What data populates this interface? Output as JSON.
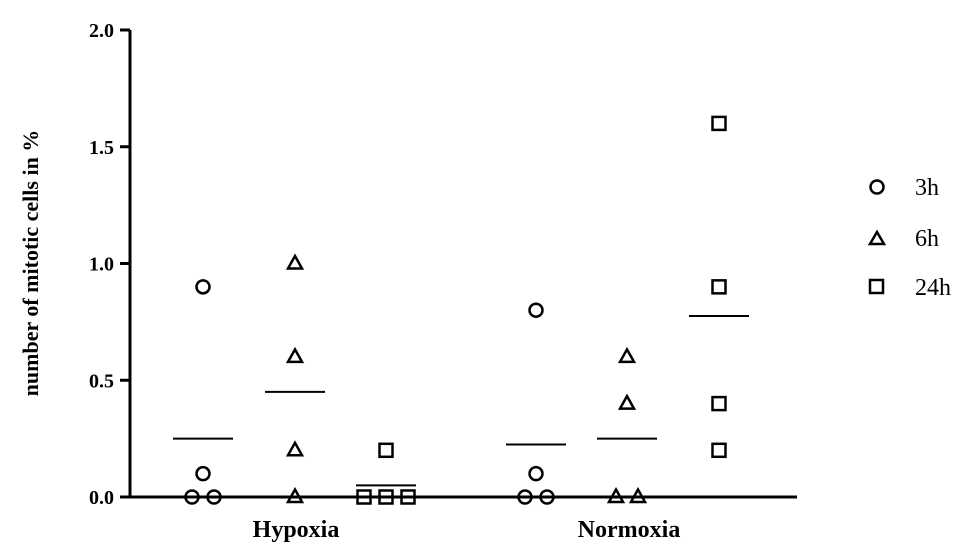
{
  "chart_data": {
    "type": "scatter",
    "title": "",
    "ylabel": "number of mitotic cells in %",
    "xlabel": "",
    "ylim": [
      0,
      2.0
    ],
    "yticks": [
      "0.0",
      "0.5",
      "1.0",
      "1.5",
      "2.0"
    ],
    "ytick_values": [
      0,
      0.5,
      1.0,
      1.5,
      2.0
    ],
    "categories": [
      "Hypoxia",
      "Normoxia"
    ],
    "legend_position": "right",
    "grid": false,
    "series": [
      {
        "name": "3h",
        "marker": "circle",
        "groups": [
          {
            "category": "Hypoxia",
            "values": [
              0.9,
              0.1,
              0,
              0
            ],
            "mean": 0.25
          },
          {
            "category": "Normoxia",
            "values": [
              0.8,
              0.1,
              0,
              0
            ],
            "mean": 0.225
          }
        ]
      },
      {
        "name": "6h",
        "marker": "triangle",
        "groups": [
          {
            "category": "Hypoxia",
            "values": [
              1.0,
              0.6,
              0.2,
              0
            ],
            "mean": 0.45
          },
          {
            "category": "Normoxia",
            "values": [
              0.6,
              0.4,
              0,
              0
            ],
            "mean": 0.25
          }
        ]
      },
      {
        "name": "24h",
        "marker": "square",
        "groups": [
          {
            "category": "Hypoxia",
            "values": [
              0.2,
              0,
              0,
              0
            ],
            "mean": 0.05
          },
          {
            "category": "Normoxia",
            "values": [
              1.6,
              0.9,
              0.4,
              0.2
            ],
            "mean": 0.775
          }
        ]
      }
    ]
  }
}
